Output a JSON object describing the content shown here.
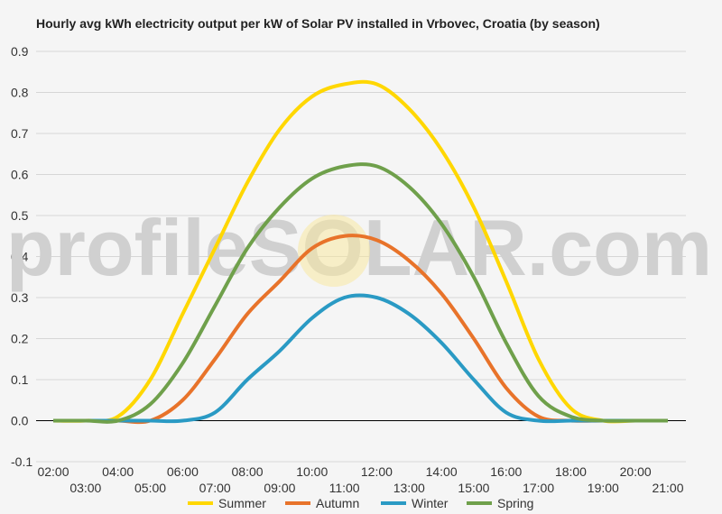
{
  "chart_data": {
    "type": "line",
    "title": "Hourly avg kWh electricity output per kW of Solar PV installed in Vrbovec, Croatia (by season)",
    "watermark": "profileSOLAR.com",
    "x": [
      "02:00",
      "03:00",
      "04:00",
      "05:00",
      "06:00",
      "07:00",
      "08:00",
      "09:00",
      "10:00",
      "11:00",
      "12:00",
      "13:00",
      "14:00",
      "15:00",
      "16:00",
      "17:00",
      "18:00",
      "19:00",
      "20:00",
      "21:00"
    ],
    "ylim": [
      -0.1,
      0.9
    ],
    "yticks": [
      -0.1,
      0.0,
      0.1,
      0.2,
      0.3,
      0.4,
      0.5,
      0.6,
      0.7,
      0.8,
      0.9
    ],
    "grid": true,
    "legend_position": "bottom",
    "series": [
      {
        "name": "Summer",
        "color": "#FFD700",
        "values": [
          0,
          0,
          0.01,
          0.1,
          0.26,
          0.42,
          0.58,
          0.71,
          0.79,
          0.82,
          0.82,
          0.76,
          0.66,
          0.52,
          0.34,
          0.15,
          0.03,
          0,
          0,
          0
        ]
      },
      {
        "name": "Autumn",
        "color": "#E8732A",
        "values": [
          0,
          0,
          0,
          0,
          0.05,
          0.15,
          0.26,
          0.34,
          0.42,
          0.45,
          0.44,
          0.39,
          0.31,
          0.2,
          0.08,
          0.01,
          0,
          0,
          0,
          0
        ]
      },
      {
        "name": "Winter",
        "color": "#2A9AC4",
        "values": [
          0,
          0,
          0,
          0,
          0,
          0.02,
          0.1,
          0.17,
          0.25,
          0.3,
          0.3,
          0.26,
          0.19,
          0.1,
          0.02,
          0,
          0,
          0,
          0,
          0
        ]
      },
      {
        "name": "Spring",
        "color": "#6FA04B",
        "values": [
          0,
          0,
          0,
          0.04,
          0.14,
          0.28,
          0.42,
          0.52,
          0.59,
          0.62,
          0.62,
          0.57,
          0.48,
          0.35,
          0.19,
          0.06,
          0.01,
          0,
          0,
          0
        ]
      }
    ]
  }
}
